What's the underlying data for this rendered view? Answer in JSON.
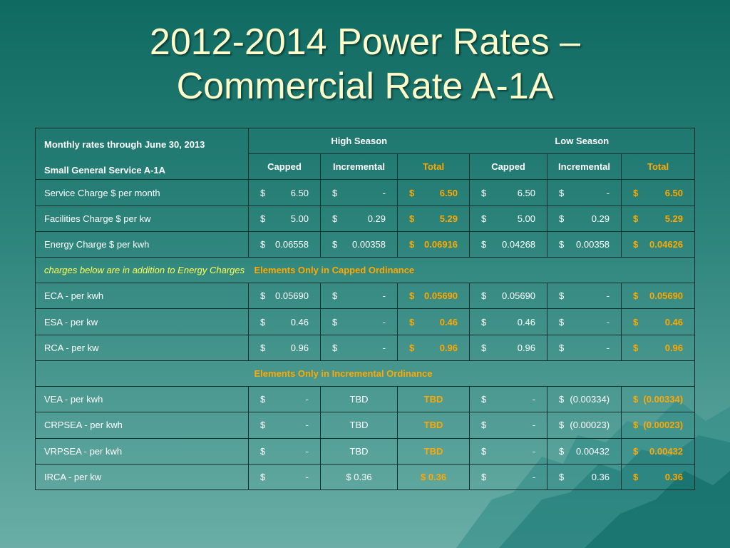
{
  "title": {
    "line1": "2012-2014 Power Rates –",
    "line2": "Commercial Rate A-1A"
  },
  "header": {
    "monthly": "Monthly rates through June 30, 2013",
    "service": "Small General Service A-1A",
    "high_season": "High Season",
    "low_season": "Low Season",
    "cols": [
      "Capped",
      "Incremental",
      "Total",
      "Capped",
      "Incremental",
      "Total"
    ]
  },
  "rows": [
    {
      "label": "Service Charge $ per month",
      "cells": [
        [
          "$",
          "6.50"
        ],
        [
          "$",
          "-"
        ],
        [
          "$",
          "6.50"
        ],
        [
          "$",
          "6.50"
        ],
        [
          "$",
          "-"
        ],
        [
          "$",
          "6.50"
        ]
      ]
    },
    {
      "label": "Facilities Charge $ per kw",
      "cells": [
        [
          "$",
          "5.00"
        ],
        [
          "$",
          "0.29"
        ],
        [
          "$",
          "5.29"
        ],
        [
          "$",
          "5.00"
        ],
        [
          "$",
          "0.29"
        ],
        [
          "$",
          "5.29"
        ]
      ]
    },
    {
      "label": "Energy Charge $ per kwh",
      "cells": [
        [
          "$",
          "0.06558"
        ],
        [
          "$",
          "0.00358"
        ],
        [
          "$",
          "0.06916"
        ],
        [
          "$",
          "0.04268"
        ],
        [
          "$",
          "0.00358"
        ],
        [
          "$",
          "0.04626"
        ]
      ]
    }
  ],
  "note": "charges below are in addition to Energy Charges",
  "capped_section": "Elements Only in Capped Ordinance",
  "capped_rows": [
    {
      "label": "ECA - per kwh",
      "cells": [
        [
          "$",
          "0.05690"
        ],
        [
          "$",
          "-"
        ],
        [
          "$",
          "0.05690"
        ],
        [
          "$",
          "0.05690"
        ],
        [
          "$",
          "-"
        ],
        [
          "$",
          "0.05690"
        ]
      ]
    },
    {
      "label": "ESA - per kw",
      "cells": [
        [
          "$",
          "0.46"
        ],
        [
          "$",
          "-"
        ],
        [
          "$",
          "0.46"
        ],
        [
          "$",
          "0.46"
        ],
        [
          "$",
          "-"
        ],
        [
          "$",
          "0.46"
        ]
      ]
    },
    {
      "label": "RCA - per kw",
      "cells": [
        [
          "$",
          "0.96"
        ],
        [
          "$",
          "-"
        ],
        [
          "$",
          "0.96"
        ],
        [
          "$",
          "0.96"
        ],
        [
          "$",
          "-"
        ],
        [
          "$",
          "0.96"
        ]
      ]
    }
  ],
  "incremental_section": "Elements Only in Incremental Ordinance",
  "incremental_rows": [
    {
      "label": "VEA - per kwh",
      "cells": [
        [
          "$",
          "-"
        ],
        [
          "",
          "TBD"
        ],
        [
          "",
          "TBD"
        ],
        [
          "$",
          "-"
        ],
        [
          "$",
          "(0.00334)"
        ],
        [
          "$",
          "(0.00334)"
        ]
      ]
    },
    {
      "label": "CRPSEA - per kwh",
      "cells": [
        [
          "$",
          "-"
        ],
        [
          "",
          "TBD"
        ],
        [
          "",
          "TBD"
        ],
        [
          "$",
          "-"
        ],
        [
          "$",
          "(0.00023)"
        ],
        [
          "$",
          "(0.00023)"
        ]
      ]
    },
    {
      "label": "VRPSEA - per kwh",
      "cells": [
        [
          "$",
          "-"
        ],
        [
          "",
          "TBD"
        ],
        [
          "",
          "TBD"
        ],
        [
          "$",
          "-"
        ],
        [
          "$",
          "0.00432"
        ],
        [
          "$",
          "0.00432"
        ]
      ]
    },
    {
      "label": "IRCA - per kw",
      "cells": [
        [
          "$",
          "-"
        ],
        [
          "",
          "$ 0.36"
        ],
        [
          "",
          "$ 0.36"
        ],
        [
          "$",
          "-"
        ],
        [
          "$",
          "0.36"
        ],
        [
          "$",
          "0.36"
        ]
      ]
    }
  ],
  "colors": {
    "accent": "#ffa800",
    "note": "#ffff55",
    "title": "#ffffcc"
  }
}
